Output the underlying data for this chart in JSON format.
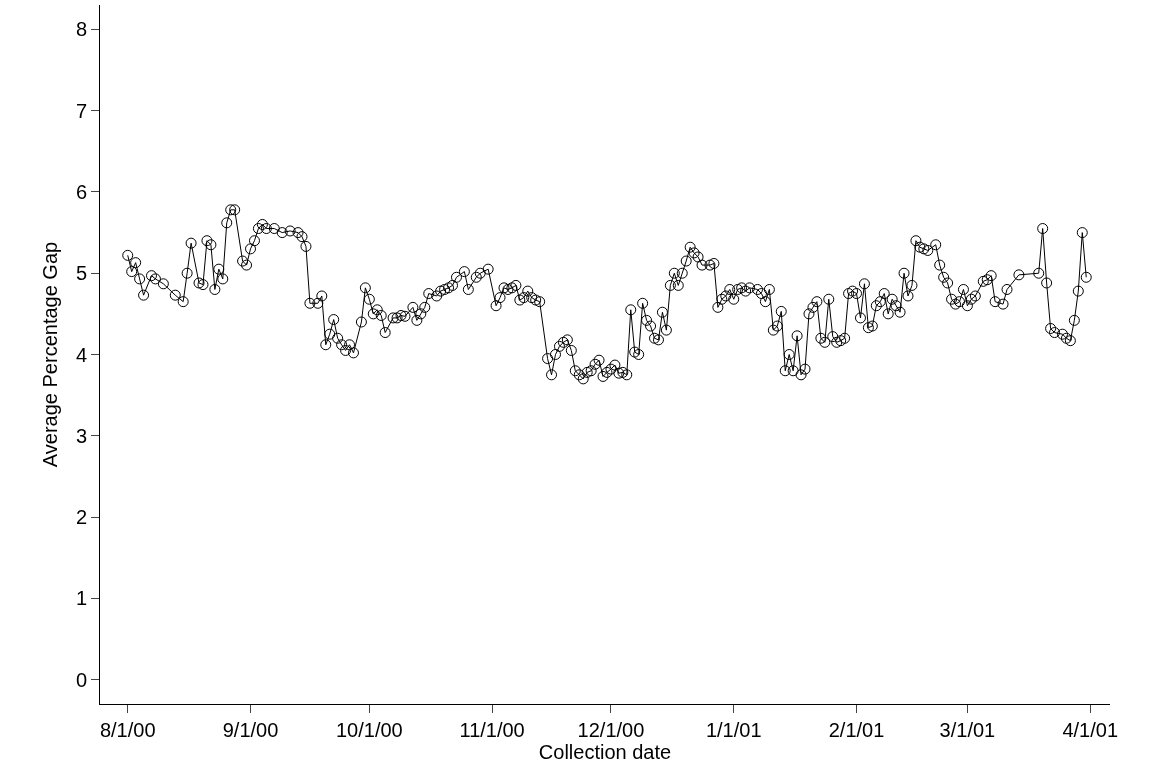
{
  "chart_data": {
    "type": "line",
    "xlabel": "Collection date",
    "ylabel": "Average Percentage Gap",
    "x": [
      "2000-08-01",
      "2000-08-02",
      "2000-08-03",
      "2000-08-04",
      "2000-08-05",
      "2000-08-07",
      "2000-08-08",
      "2000-08-10",
      "2000-08-13",
      "2000-08-15",
      "2000-08-16",
      "2000-08-17",
      "2000-08-19",
      "2000-08-20",
      "2000-08-21",
      "2000-08-22",
      "2000-08-23",
      "2000-08-24",
      "2000-08-25",
      "2000-08-26",
      "2000-08-27",
      "2000-08-28",
      "2000-08-30",
      "2000-08-31",
      "2000-09-01",
      "2000-09-02",
      "2000-09-03",
      "2000-09-04",
      "2000-09-05",
      "2000-09-07",
      "2000-09-09",
      "2000-09-11",
      "2000-09-13",
      "2000-09-14",
      "2000-09-15",
      "2000-09-16",
      "2000-09-18",
      "2000-09-19",
      "2000-09-20",
      "2000-09-21",
      "2000-09-22",
      "2000-09-23",
      "2000-09-24",
      "2000-09-25",
      "2000-09-26",
      "2000-09-27",
      "2000-09-29",
      "2000-09-30",
      "2000-10-01",
      "2000-10-02",
      "2000-10-03",
      "2000-10-04",
      "2000-10-05",
      "2000-10-07",
      "2000-10-08",
      "2000-10-09",
      "2000-10-10",
      "2000-10-12",
      "2000-10-13",
      "2000-10-14",
      "2000-10-15",
      "2000-10-16",
      "2000-10-18",
      "2000-10-19",
      "2000-10-20",
      "2000-10-21",
      "2000-10-22",
      "2000-10-23",
      "2000-10-25",
      "2000-10-26",
      "2000-10-28",
      "2000-10-29",
      "2000-10-31",
      "2000-11-02",
      "2000-11-03",
      "2000-11-04",
      "2000-11-05",
      "2000-11-06",
      "2000-11-07",
      "2000-11-08",
      "2000-11-09",
      "2000-11-10",
      "2000-11-11",
      "2000-11-12",
      "2000-11-13",
      "2000-11-15",
      "2000-11-16",
      "2000-11-17",
      "2000-11-18",
      "2000-11-19",
      "2000-11-20",
      "2000-11-21",
      "2000-11-22",
      "2000-11-23",
      "2000-11-24",
      "2000-11-25",
      "2000-11-26",
      "2000-11-27",
      "2000-11-28",
      "2000-11-29",
      "2000-11-30",
      "2000-12-01",
      "2000-12-02",
      "2000-12-03",
      "2000-12-04",
      "2000-12-05",
      "2000-12-06",
      "2000-12-07",
      "2000-12-08",
      "2000-12-09",
      "2000-12-10",
      "2000-12-11",
      "2000-12-12",
      "2000-12-13",
      "2000-12-14",
      "2000-12-15",
      "2000-12-16",
      "2000-12-17",
      "2000-12-18",
      "2000-12-19",
      "2000-12-20",
      "2000-12-21",
      "2000-12-22",
      "2000-12-23",
      "2000-12-24",
      "2000-12-26",
      "2000-12-27",
      "2000-12-28",
      "2000-12-29",
      "2000-12-30",
      "2000-12-31",
      "2001-01-01",
      "2001-01-02",
      "2001-01-03",
      "2001-01-04",
      "2001-01-05",
      "2001-01-07",
      "2001-01-08",
      "2001-01-09",
      "2001-01-10",
      "2001-01-11",
      "2001-01-12",
      "2001-01-13",
      "2001-01-14",
      "2001-01-15",
      "2001-01-16",
      "2001-01-17",
      "2001-01-18",
      "2001-01-19",
      "2001-01-20",
      "2001-01-21",
      "2001-01-22",
      "2001-01-23",
      "2001-01-24",
      "2001-01-25",
      "2001-01-26",
      "2001-01-27",
      "2001-01-28",
      "2001-01-29",
      "2001-01-30",
      "2001-01-31",
      "2001-02-01",
      "2001-02-02",
      "2001-02-03",
      "2001-02-04",
      "2001-02-05",
      "2001-02-06",
      "2001-02-07",
      "2001-02-08",
      "2001-02-09",
      "2001-02-10",
      "2001-02-11",
      "2001-02-12",
      "2001-02-13",
      "2001-02-14",
      "2001-02-15",
      "2001-02-16",
      "2001-02-17",
      "2001-02-18",
      "2001-02-19",
      "2001-02-21",
      "2001-02-22",
      "2001-02-23",
      "2001-02-24",
      "2001-02-25",
      "2001-02-26",
      "2001-02-27",
      "2001-02-28",
      "2001-03-01",
      "2001-03-02",
      "2001-03-03",
      "2001-03-05",
      "2001-03-06",
      "2001-03-07",
      "2001-03-08",
      "2001-03-10",
      "2001-03-11",
      "2001-03-14",
      "2001-03-19",
      "2001-03-20",
      "2001-03-21",
      "2001-03-22",
      "2001-03-23",
      "2001-03-25",
      "2001-03-26",
      "2001-03-27",
      "2001-03-28",
      "2001-03-29",
      "2001-03-30",
      "2001-03-31"
    ],
    "series": [
      {
        "color": "#000000",
        "values": [
          5.22,
          5.02,
          5.13,
          4.93,
          4.73,
          4.97,
          4.93,
          4.87,
          4.73,
          4.65,
          5.0,
          5.37,
          4.88,
          4.86,
          5.4,
          5.35,
          4.8,
          5.05,
          4.93,
          5.62,
          5.78,
          5.78,
          5.15,
          5.1,
          5.3,
          5.4,
          5.55,
          5.6,
          5.55,
          5.55,
          5.5,
          5.52,
          5.5,
          5.45,
          5.33,
          4.63,
          4.63,
          4.72,
          4.12,
          4.25,
          4.43,
          4.2,
          4.12,
          4.05,
          4.12,
          4.02,
          4.4,
          4.82,
          4.68,
          4.5,
          4.55,
          4.48,
          4.27,
          4.45,
          4.45,
          4.48,
          4.47,
          4.58,
          4.42,
          4.5,
          4.58,
          4.75,
          4.72,
          4.78,
          4.8,
          4.82,
          4.85,
          4.95,
          5.02,
          4.8,
          4.95,
          5.0,
          5.05,
          4.6,
          4.7,
          4.82,
          4.8,
          4.82,
          4.85,
          4.67,
          4.7,
          4.78,
          4.7,
          4.67,
          4.65,
          3.95,
          3.75,
          4.0,
          4.1,
          4.15,
          4.18,
          4.05,
          3.8,
          3.75,
          3.7,
          3.78,
          3.8,
          3.88,
          3.93,
          3.73,
          3.78,
          3.82,
          3.87,
          3.77,
          3.78,
          3.75,
          4.55,
          4.03,
          4.0,
          4.63,
          4.42,
          4.35,
          4.2,
          4.18,
          4.52,
          4.3,
          4.85,
          5.0,
          4.85,
          5.0,
          5.15,
          5.32,
          5.25,
          5.2,
          5.1,
          5.1,
          5.12,
          4.58,
          4.68,
          4.72,
          4.8,
          4.68,
          4.8,
          4.82,
          4.78,
          4.82,
          4.8,
          4.75,
          4.65,
          4.8,
          4.3,
          4.35,
          4.53,
          3.8,
          4.0,
          3.8,
          4.23,
          3.75,
          3.82,
          4.5,
          4.58,
          4.65,
          4.2,
          4.15,
          4.68,
          4.22,
          4.15,
          4.17,
          4.2,
          4.75,
          4.78,
          4.75,
          4.45,
          4.87,
          4.33,
          4.35,
          4.6,
          4.65,
          4.75,
          4.5,
          4.68,
          4.6,
          4.52,
          5.0,
          4.72,
          4.85,
          5.4,
          5.32,
          5.3,
          5.28,
          5.35,
          5.1,
          4.95,
          4.88,
          4.68,
          4.62,
          4.65,
          4.8,
          4.6,
          4.68,
          4.72,
          4.9,
          4.92,
          4.97,
          4.65,
          4.62,
          4.8,
          4.98,
          5.0,
          5.55,
          4.88,
          4.32,
          4.27,
          4.25,
          4.2,
          4.17,
          4.42,
          4.78,
          5.5,
          4.95
        ]
      }
    ],
    "xlim": [
      "2000-07-25",
      "2001-04-06"
    ],
    "xticks": [
      {
        "value": "2000-08-01",
        "label": "8/1/00"
      },
      {
        "value": "2000-09-01",
        "label": "9/1/00"
      },
      {
        "value": "2000-10-01",
        "label": "10/1/00"
      },
      {
        "value": "2000-11-01",
        "label": "11/1/00"
      },
      {
        "value": "2000-12-01",
        "label": "12/1/00"
      },
      {
        "value": "2001-01-01",
        "label": "1/1/01"
      },
      {
        "value": "2001-02-01",
        "label": "2/1/01"
      },
      {
        "value": "2001-03-01",
        "label": "3/1/01"
      },
      {
        "value": "2001-04-01",
        "label": "4/1/01"
      }
    ],
    "ylim": [
      -0.3,
      8.3
    ],
    "yticks": [
      0,
      1,
      2,
      3,
      4,
      5,
      6,
      7,
      8
    ],
    "marker": "circle",
    "line_style": "solid"
  }
}
